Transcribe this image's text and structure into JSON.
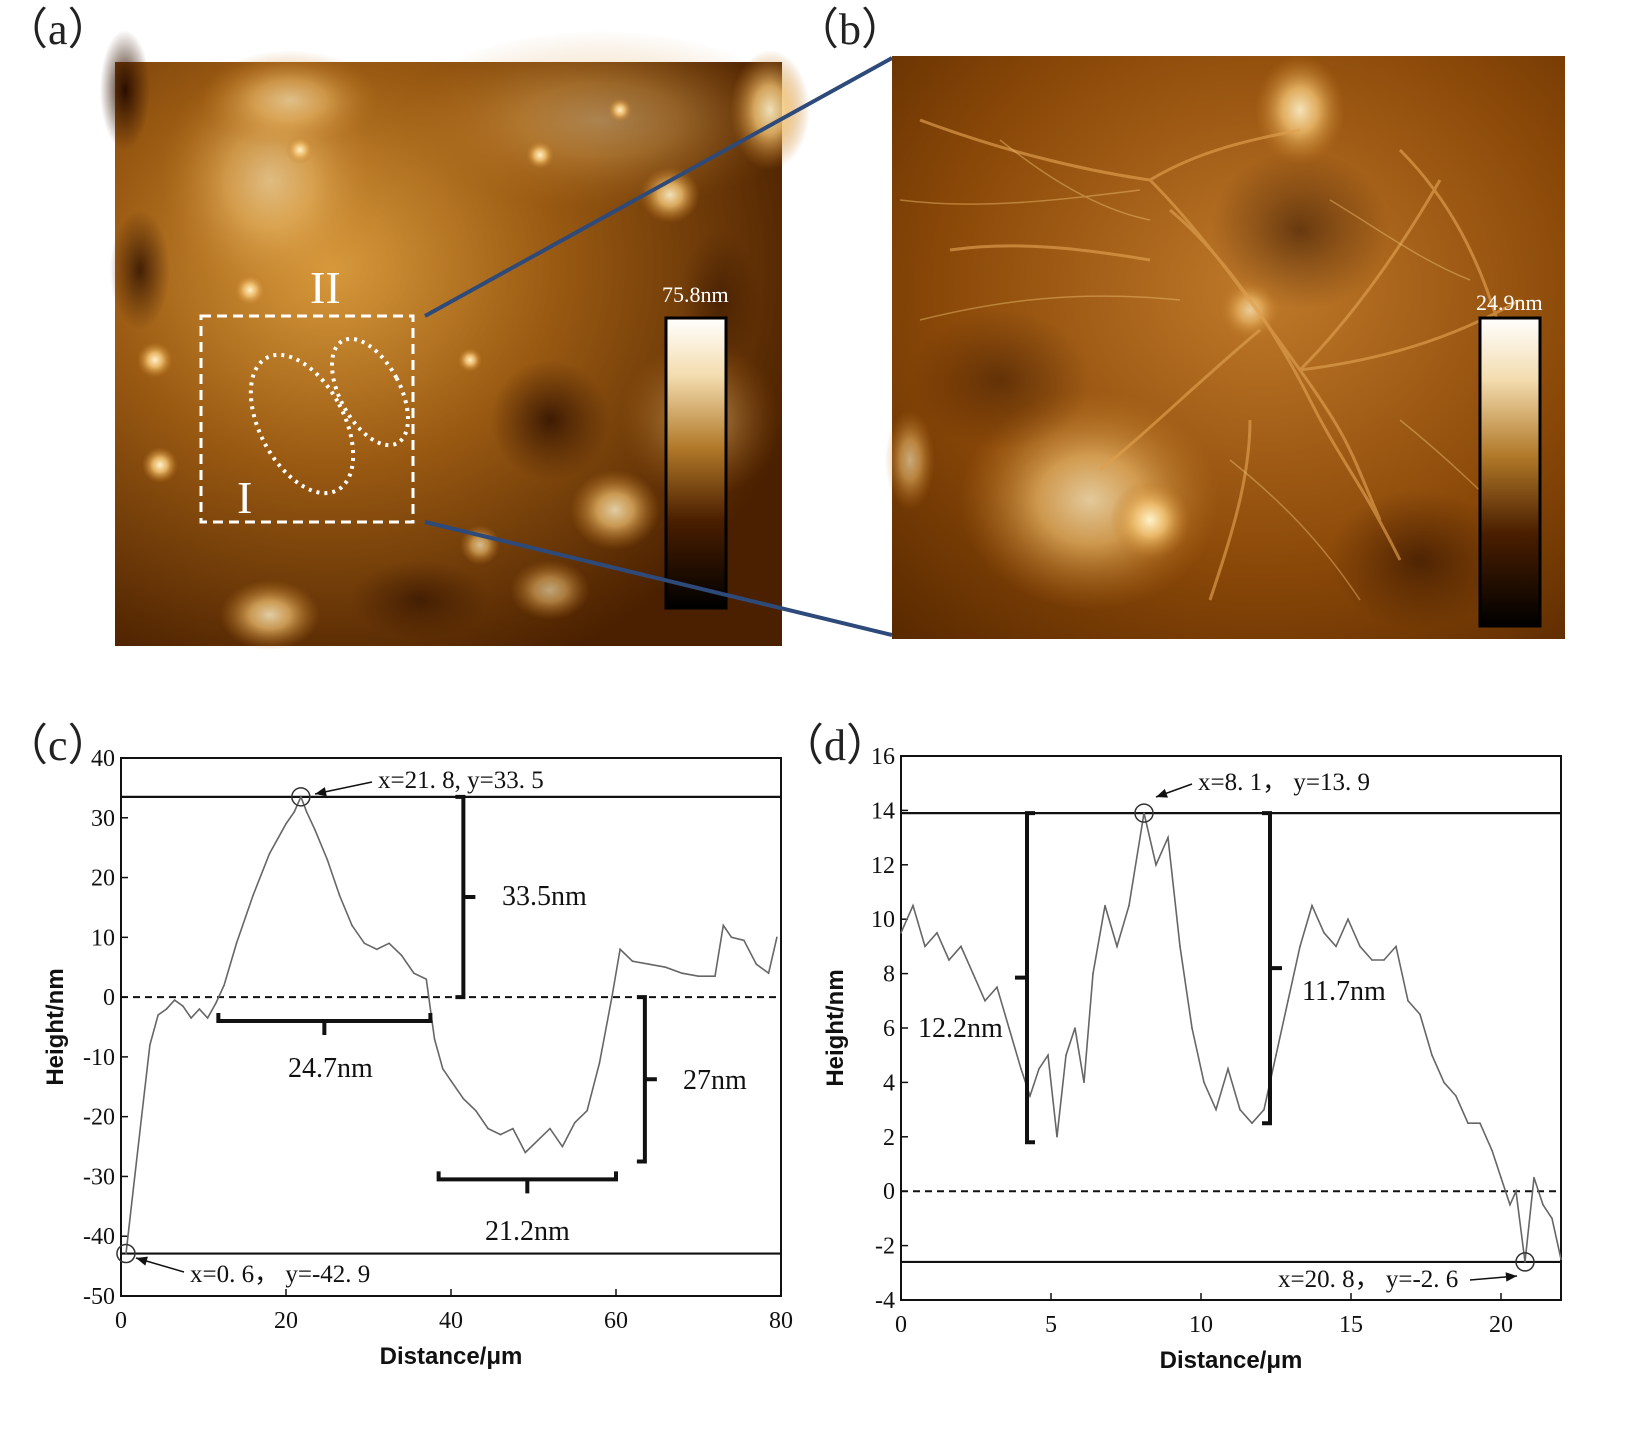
{
  "panels": {
    "a": {
      "label": "（a）",
      "colorbar_max": "75.8nm",
      "region_I": "I",
      "region_II": "II"
    },
    "b": {
      "label": "（b）",
      "colorbar_max": "24.9nm"
    },
    "c": {
      "label": "（c）"
    },
    "d": {
      "label": "（d）"
    }
  },
  "colors": {
    "afm_dark": "#2a1000",
    "afm_mid": "#9a5a10",
    "afm_light": "#f6e0a6",
    "zoom_line": "#2d4a7a",
    "trace": "#666666"
  },
  "chart_data": [
    {
      "type": "line",
      "panel": "c",
      "xlabel": "Distance/μm",
      "ylabel": "Height/nm",
      "xlim": [
        0,
        80
      ],
      "ylim": [
        -50,
        40
      ],
      "xticks": [
        0,
        20,
        40,
        60,
        80
      ],
      "yticks": [
        -50,
        -40,
        -30,
        -20,
        -10,
        0,
        10,
        20,
        30,
        40
      ],
      "x": [
        0.6,
        1.5,
        2.5,
        3.5,
        4.5,
        5.5,
        6.5,
        7.5,
        8.5,
        9.5,
        10.5,
        11.5,
        12.5,
        14,
        16,
        18,
        20,
        21,
        21.8,
        22.5,
        23.5,
        25,
        26.5,
        28,
        29.5,
        31,
        32.5,
        34,
        35.5,
        37,
        38,
        39,
        40,
        41.5,
        43,
        44.5,
        46,
        47.5,
        49,
        50.5,
        52,
        53.5,
        55,
        56.5,
        58,
        59.5,
        60.5,
        62,
        64,
        66,
        68,
        70,
        72,
        73,
        74,
        75.5,
        77,
        78.5,
        79.5
      ],
      "y": [
        -42.9,
        -32,
        -20,
        -8,
        -3,
        -2,
        -0.5,
        -1.5,
        -3.5,
        -2,
        -3.5,
        -1,
        2,
        9,
        17,
        24,
        29,
        31,
        33.5,
        31,
        28,
        23,
        17,
        12,
        9,
        8,
        9,
        7,
        4,
        3,
        -7,
        -12,
        -14,
        -17,
        -19,
        -22,
        -23,
        -22,
        -26,
        -24,
        -22,
        -25,
        -21,
        -19,
        -11,
        0,
        8,
        6,
        5.5,
        5,
        4,
        3.5,
        3.5,
        12,
        10,
        9.5,
        5.5,
        4,
        10
      ],
      "reference_lines": [
        33.5,
        -42.9
      ],
      "zero_line": 0,
      "markers": [
        {
          "x": 21.8,
          "y": 33.5,
          "text": "x=21. 8, y=33. 5"
        },
        {
          "x": 0.6,
          "y": -42.9,
          "text": "x=0. 6， y=-42. 9"
        }
      ],
      "annotations": {
        "peak_height": "33.5nm",
        "peak_width": "24.7nm",
        "valley_depth": "27nm",
        "valley_width": "21.2nm"
      }
    },
    {
      "type": "line",
      "panel": "d",
      "xlabel": "Distance/μm",
      "ylabel": "Height/nm",
      "xlim": [
        0,
        22
      ],
      "ylim": [
        -4,
        16
      ],
      "xticks": [
        0,
        5,
        10,
        15,
        20
      ],
      "yticks": [
        -4,
        -2,
        0,
        2,
        4,
        6,
        8,
        10,
        12,
        14,
        16
      ],
      "x": [
        0,
        0.4,
        0.8,
        1.2,
        1.6,
        2,
        2.4,
        2.8,
        3.2,
        3.6,
        4,
        4.3,
        4.6,
        4.9,
        5.2,
        5.5,
        5.8,
        6.1,
        6.4,
        6.8,
        7.2,
        7.6,
        8.1,
        8.5,
        8.9,
        9.3,
        9.7,
        10.1,
        10.5,
        10.9,
        11.3,
        11.7,
        12.1,
        12.5,
        12.9,
        13.3,
        13.7,
        14.1,
        14.5,
        14.9,
        15.3,
        15.7,
        16.1,
        16.5,
        16.9,
        17.3,
        17.7,
        18.1,
        18.5,
        18.9,
        19.3,
        19.7,
        20,
        20.3,
        20.5,
        20.8,
        21.1,
        21.4,
        21.7,
        22
      ],
      "y": [
        9.5,
        10.5,
        9,
        9.5,
        8.5,
        9,
        8,
        7,
        7.5,
        6,
        4.5,
        3.5,
        4.5,
        5,
        2,
        5,
        6,
        4,
        8,
        10.5,
        9,
        10.5,
        13.9,
        12,
        13,
        9,
        6,
        4,
        3,
        4.5,
        3,
        2.5,
        3,
        5,
        7,
        9,
        10.5,
        9.5,
        9,
        10,
        9,
        8.5,
        8.5,
        9,
        7,
        6.5,
        5,
        4,
        3.5,
        2.5,
        2.5,
        1.5,
        0.5,
        -0.5,
        0,
        -2.6,
        0.5,
        -0.5,
        -1,
        -2.5
      ],
      "reference_lines": [
        13.9,
        -2.6
      ],
      "zero_line": 0,
      "markers": [
        {
          "x": 8.1,
          "y": 13.9,
          "text": "x=8. 1， y=13. 9"
        },
        {
          "x": 20.8,
          "y": -2.6,
          "text": "x=20. 8， y=-2. 6"
        }
      ],
      "annotations": {
        "left_height": "12.2nm",
        "right_height": "11.7nm"
      }
    }
  ]
}
